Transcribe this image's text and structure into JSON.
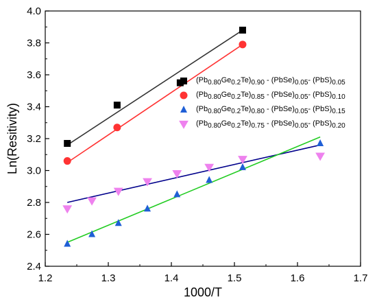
{
  "chart_data": {
    "type": "scatter",
    "xlabel": "1000/T",
    "ylabel": "Ln(Resitivity)",
    "xlim": [
      1.2,
      1.7
    ],
    "ylim": [
      2.4,
      4.0
    ],
    "xticks": [
      "1.2",
      "1.3",
      "1.4",
      "1.5",
      "1.6",
      "1.7"
    ],
    "yticks": [
      "2.4",
      "2.6",
      "2.8",
      "3.0",
      "3.2",
      "3.4",
      "3.6",
      "3.8",
      "4.0"
    ],
    "grid": false,
    "legend_position": "center-right",
    "series": [
      {
        "name": "(Pb0.80Ge0.2Te)0.90 - (PbSe)0.05- (PbS)0.05",
        "legend": [
          [
            "(Pb",
            ""
          ],
          [
            "0.80",
            "sub"
          ],
          [
            "Ge",
            ""
          ],
          [
            "0.2",
            "sub"
          ],
          [
            "Te)",
            ""
          ],
          [
            "0.90",
            "sub"
          ],
          [
            " - (PbSe)",
            ""
          ],
          [
            "0.05",
            "sub"
          ],
          [
            "- (PbS)",
            ""
          ],
          [
            "0.05",
            "sub"
          ]
        ],
        "marker": "square",
        "color": "#000000",
        "line_color": "#333333",
        "x": [
          1.235,
          1.314,
          1.414,
          1.513
        ],
        "y": [
          3.17,
          3.41,
          3.55,
          3.88
        ],
        "fit": [
          [
            1.235,
            3.16
          ],
          [
            1.513,
            3.88
          ]
        ]
      },
      {
        "name": "(Pb0.80Ge0.2Te)0.85 - (PbSe)0.05- (PbS)0.10",
        "legend": [
          [
            "(Pb",
            ""
          ],
          [
            "0.80",
            "sub"
          ],
          [
            "Ge",
            ""
          ],
          [
            "0.2",
            "sub"
          ],
          [
            "Te)",
            ""
          ],
          [
            "0.85",
            "sub"
          ],
          [
            " - (PbSe)",
            ""
          ],
          [
            "0.05",
            "sub"
          ],
          [
            "- (PbS)",
            ""
          ],
          [
            "0.10",
            "sub"
          ]
        ],
        "marker": "circle",
        "color": "#ff3333",
        "line_color": "#ff3333",
        "x": [
          1.235,
          1.314,
          1.513
        ],
        "y": [
          3.06,
          3.27,
          3.79
        ],
        "fit": [
          [
            1.235,
            3.05
          ],
          [
            1.513,
            3.79
          ]
        ]
      },
      {
        "name": "(Pb0.80Ge0.2Te)0.80 - (PbSe)0.05- (PbS)0.15",
        "legend": [
          [
            "(Pb",
            ""
          ],
          [
            "0.80",
            "sub"
          ],
          [
            "Ge",
            ""
          ],
          [
            "0.2",
            "sub"
          ],
          [
            "Te)",
            ""
          ],
          [
            "0.80",
            "sub"
          ],
          [
            " - (PbSe)",
            ""
          ],
          [
            "0.05",
            "sub"
          ],
          [
            "- (PbS)",
            ""
          ],
          [
            "0.15",
            "sub"
          ]
        ],
        "marker": "triangle-up",
        "color": "#1f5fd6",
        "line_color": "#00008b",
        "x": [
          1.235,
          1.274,
          1.316,
          1.362,
          1.409,
          1.46,
          1.513,
          1.636
        ],
        "y": [
          2.54,
          2.6,
          2.67,
          2.76,
          2.85,
          2.94,
          3.02,
          3.17
        ],
        "fit": [
          [
            1.235,
            2.8
          ],
          [
            1.636,
            3.16
          ]
        ]
      },
      {
        "name": "(Pb0.80Ge0.2Te)0.75 - (PbSe)0.05- (PbS)0.20",
        "legend": [
          [
            "(Pb",
            ""
          ],
          [
            "0.80",
            "sub"
          ],
          [
            "Ge",
            ""
          ],
          [
            "0.2",
            "sub"
          ],
          [
            "Te)",
            ""
          ],
          [
            "0.75",
            "sub"
          ],
          [
            " - (PbSe)",
            ""
          ],
          [
            "0.05",
            "sub"
          ],
          [
            "- (PbS)",
            ""
          ],
          [
            "0.20",
            "sub"
          ]
        ],
        "marker": "triangle-down",
        "color": "#ee82ee",
        "line_color": "#22cc22",
        "x": [
          1.235,
          1.274,
          1.316,
          1.362,
          1.409,
          1.46,
          1.513,
          1.636
        ],
        "y": [
          2.76,
          2.81,
          2.87,
          2.93,
          2.98,
          3.02,
          3.07,
          3.09
        ],
        "fit": [
          [
            1.235,
            2.55
          ],
          [
            1.636,
            3.21
          ]
        ]
      }
    ]
  }
}
